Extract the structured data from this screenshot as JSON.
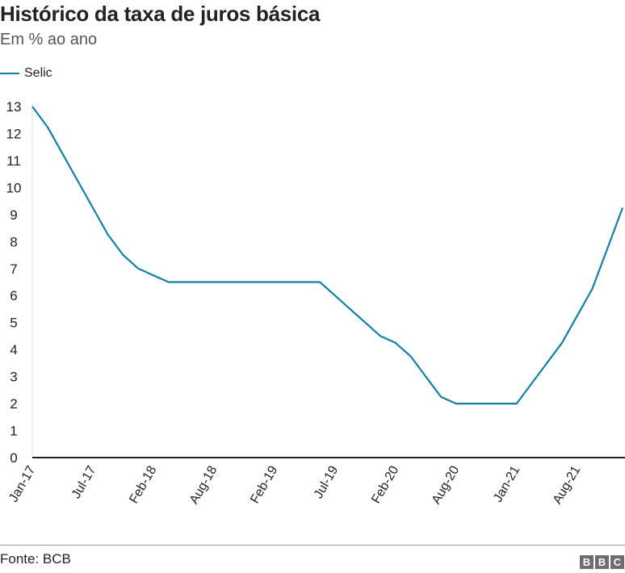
{
  "chart_data": {
    "type": "line",
    "title": "Histórico da taxa de juros básica",
    "subtitle": "Em % ao ano",
    "xlabel": "",
    "ylabel": "",
    "ylim": [
      0,
      13
    ],
    "yticks": [
      0,
      1,
      2,
      3,
      4,
      5,
      6,
      7,
      8,
      9,
      10,
      11,
      12,
      13
    ],
    "xtick_labels": [
      "Jan-17",
      "Jul-17",
      "Feb-18",
      "Aug-18",
      "Feb-19",
      "Jul-19",
      "Feb-20",
      "Aug-20",
      "Jan-21",
      "Aug-21"
    ],
    "xtick_every": 4,
    "grid": false,
    "legend": "top-left",
    "series": [
      {
        "name": "Selic",
        "color": "#1380a1",
        "values": [
          13,
          12.25,
          11.25,
          10.25,
          9.25,
          8.25,
          7.5,
          7,
          6.75,
          6.5,
          6.5,
          6.5,
          6.5,
          6.5,
          6.5,
          6.5,
          6.5,
          6.5,
          6.5,
          6.5,
          6,
          5.5,
          5,
          4.5,
          4.25,
          3.75,
          3,
          2.25,
          2,
          2,
          2,
          2,
          2,
          2.75,
          3.5,
          4.25,
          5.25,
          6.25,
          7.75,
          9.25
        ]
      }
    ]
  },
  "footer": {
    "source": "Fonte: BCB",
    "logo": [
      "B",
      "B",
      "C"
    ]
  }
}
